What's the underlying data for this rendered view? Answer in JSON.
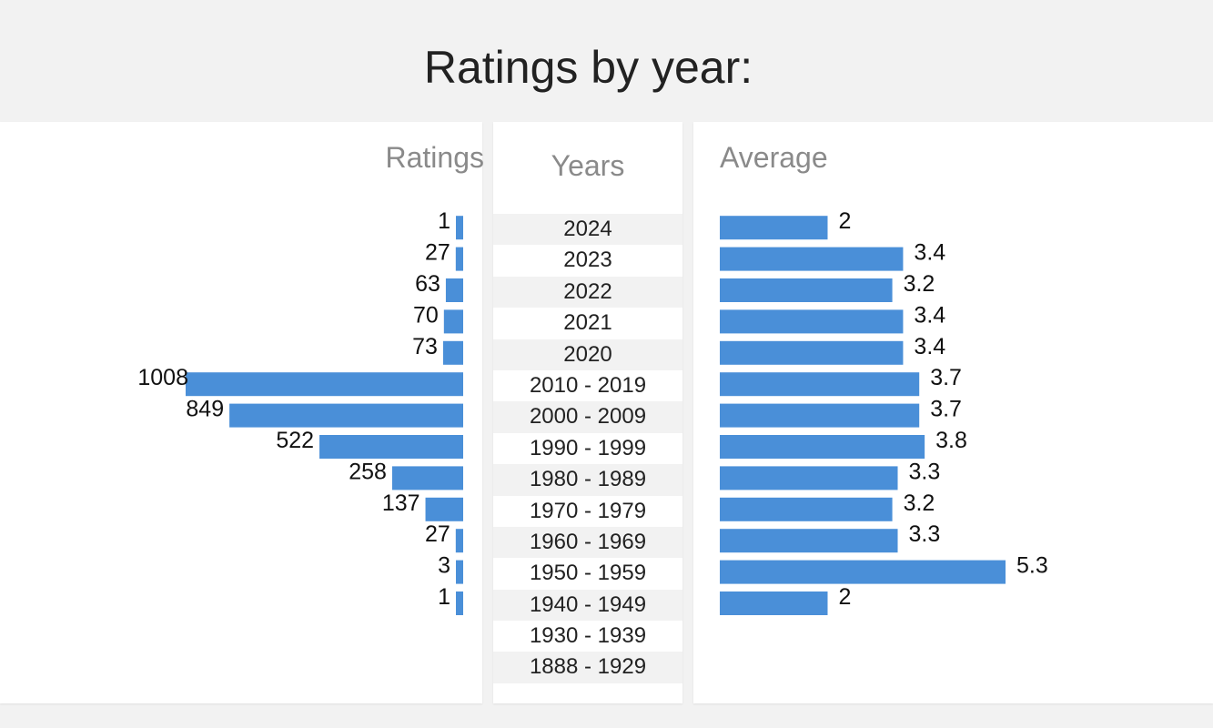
{
  "title": "Ratings by year:",
  "headers": {
    "ratings": "Ratings",
    "years": "Years",
    "average": "Average"
  },
  "colors": {
    "bar": "#4a8fd8",
    "background": "#f2f2f2",
    "panel": "#ffffff"
  },
  "chart_data": {
    "type": "bar",
    "categories": [
      "2024",
      "2023",
      "2022",
      "2021",
      "2020",
      "2010 - 2019",
      "2000 - 2009",
      "1990 - 1999",
      "1980 - 1989",
      "1970 - 1979",
      "1960 - 1969",
      "1950 - 1959",
      "1940 - 1949",
      "1930 - 1939",
      "1888 - 1929"
    ],
    "series": [
      {
        "name": "Ratings",
        "values": [
          1,
          27,
          63,
          70,
          73,
          1008,
          849,
          522,
          258,
          137,
          27,
          3,
          1,
          null,
          null
        ]
      },
      {
        "name": "Average",
        "values": [
          2,
          3.4,
          3.2,
          3.4,
          3.4,
          3.7,
          3.7,
          3.8,
          3.3,
          3.2,
          3.3,
          5.3,
          2,
          null,
          null
        ]
      }
    ],
    "value_labels": {
      "ratings": [
        "1",
        "27",
        "63",
        "70",
        "73",
        "1008",
        "849",
        "522",
        "258",
        "137",
        "27",
        "3",
        "1",
        "",
        ""
      ],
      "average": [
        "2",
        "3.4",
        "3.2",
        "3.4",
        "3.4",
        "3.7",
        "3.7",
        "3.8",
        "3.3",
        "3.2",
        "3.3",
        "5.3",
        "2",
        "",
        ""
      ]
    }
  }
}
